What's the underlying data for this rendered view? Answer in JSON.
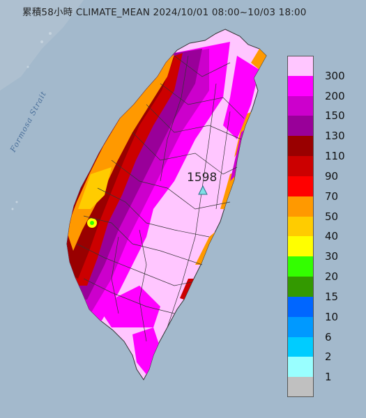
{
  "title": "累積58小時 CLIMATE_MEAN 2024/10/01 08:00~10/03 18:00",
  "strait_label": "Formosa Strait",
  "max_station": {
    "value": "1598",
    "marker": "triangle-marker"
  },
  "legend": [
    {
      "label": "300",
      "color": "#ffc6ff"
    },
    {
      "label": "200",
      "color": "#ff00ff"
    },
    {
      "label": "150",
      "color": "#cc00cc"
    },
    {
      "label": "130",
      "color": "#990099"
    },
    {
      "label": "110",
      "color": "#990000"
    },
    {
      "label": "90",
      "color": "#cc0000"
    },
    {
      "label": "70",
      "color": "#ff0000"
    },
    {
      "label": "50",
      "color": "#ff9900"
    },
    {
      "label": "40",
      "color": "#ffcc00"
    },
    {
      "label": "30",
      "color": "#ffff00"
    },
    {
      "label": "20",
      "color": "#33ff00"
    },
    {
      "label": "15",
      "color": "#339900"
    },
    {
      "label": "10",
      "color": "#0066ff"
    },
    {
      "label": "6",
      "color": "#0099ff"
    },
    {
      "label": "2",
      "color": "#00ccff"
    },
    {
      "label": "1",
      "color": "#99ffff"
    },
    {
      "label": "",
      "color": "#c0c0c0"
    }
  ]
}
